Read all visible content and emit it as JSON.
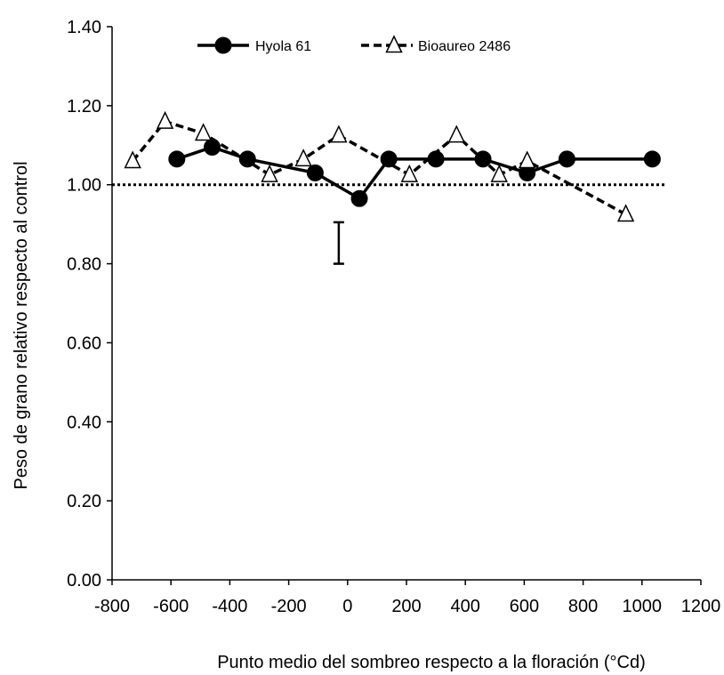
{
  "chart_data": {
    "type": "line",
    "title": "",
    "xlabel": "Punto medio del sombreo respecto a la floración (°Cd)",
    "ylabel": "Peso de grano relativo respecto al control",
    "xlim": [
      -800,
      1200
    ],
    "ylim": [
      0,
      1.4
    ],
    "x_ticks": [
      -800,
      -600,
      -400,
      -200,
      0,
      200,
      400,
      600,
      800,
      1000,
      1200
    ],
    "x_tick_labels": [
      "-800",
      "-600",
      "-400",
      "-200",
      "0",
      "200",
      "400",
      "600",
      "800",
      "1000",
      "1200"
    ],
    "y_ticks": [
      0,
      0.2,
      0.4,
      0.6,
      0.8,
      1.0,
      1.2,
      1.4
    ],
    "y_tick_labels": [
      "0.00",
      "0.20",
      "0.40",
      "0.60",
      "0.80",
      "1.00",
      "1.20",
      "1.40"
    ],
    "grid": false,
    "legend_position": "top",
    "series": [
      {
        "name": "Hyola 61",
        "marker": "filled-circle",
        "line_style": "solid",
        "color": "#000000",
        "x": [
          -580,
          -460,
          -340,
          -110,
          40,
          140,
          300,
          460,
          610,
          745,
          1035
        ],
        "y": [
          1.065,
          1.095,
          1.065,
          1.03,
          0.965,
          1.065,
          1.065,
          1.065,
          1.03,
          1.065,
          1.065
        ]
      },
      {
        "name": "Bioaureo 2486",
        "marker": "open-triangle",
        "line_style": "dashed",
        "color": "#000000",
        "x": [
          -730,
          -620,
          -490,
          -265,
          -150,
          -30,
          210,
          370,
          515,
          610,
          945
        ],
        "y": [
          1.06,
          1.16,
          1.13,
          1.025,
          1.065,
          1.125,
          1.025,
          1.125,
          1.025,
          1.06,
          0.925
        ]
      }
    ],
    "reference_line": {
      "y": 1.0,
      "style": "dotted",
      "color": "#000000"
    },
    "error_bar": {
      "x": -30,
      "y_low": 0.8,
      "y_high": 0.905
    }
  }
}
